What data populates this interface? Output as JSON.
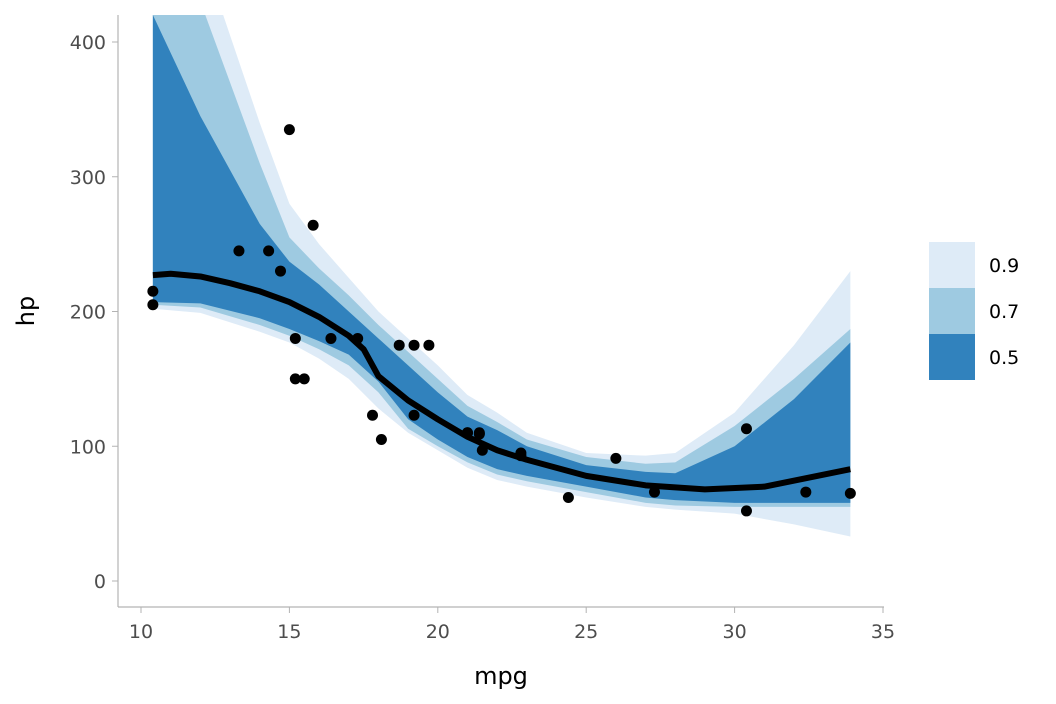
{
  "chart_data": {
    "type": "line",
    "title": "",
    "xlabel": "mpg",
    "ylabel": "hp",
    "xlim": [
      9.2,
      35
    ],
    "ylim": [
      -20,
      420
    ],
    "xticks": [
      10,
      15,
      20,
      25,
      30,
      35
    ],
    "yticks": [
      0,
      100,
      200,
      300,
      400
    ],
    "grid": false,
    "legend": {
      "placement": "right",
      "entries": [
        {
          "label": "0.9",
          "color": "#deebf7"
        },
        {
          "label": "0.7",
          "color": "#9ecae1"
        },
        {
          "label": "0.5",
          "color": "#3182bd"
        }
      ]
    },
    "ribbon_x": [
      10.4,
      12,
      14,
      15,
      16,
      17,
      18,
      19,
      20,
      21,
      22,
      23,
      25,
      27,
      28,
      30,
      32,
      33.9
    ],
    "ribbons": [
      {
        "level": "0.9",
        "upper": [
          600,
          470,
          340,
          280,
          250,
          225,
          200,
          180,
          160,
          138,
          125,
          110,
          95,
          93,
          95,
          125,
          175,
          230
        ],
        "lower": [
          202,
          199,
          185,
          177,
          165,
          150,
          128,
          110,
          97,
          84,
          75,
          70,
          62,
          55,
          53,
          50,
          42,
          33
        ]
      },
      {
        "level": "0.7",
        "upper": [
          500,
          430,
          310,
          255,
          232,
          212,
          190,
          170,
          150,
          130,
          118,
          105,
          92,
          87,
          88,
          115,
          150,
          187
        ],
        "lower": [
          205,
          203,
          190,
          182,
          172,
          160,
          140,
          113,
          100,
          88,
          79,
          74,
          66,
          58,
          56,
          55,
          55,
          55
        ]
      },
      {
        "level": "0.5",
        "upper": [
          420,
          345,
          265,
          237,
          220,
          200,
          180,
          160,
          140,
          122,
          112,
          100,
          86,
          81,
          80,
          100,
          135,
          177
        ],
        "lower": [
          207,
          206,
          195,
          187,
          178,
          168,
          148,
          120,
          105,
          92,
          83,
          78,
          70,
          62,
          60,
          58,
          58,
          58
        ]
      }
    ],
    "median": {
      "x": [
        10.4,
        11,
        12,
        13,
        14,
        15,
        16,
        17,
        17.5,
        18,
        19,
        20,
        21,
        22,
        23,
        25,
        27,
        29,
        31,
        33.9
      ],
      "y": [
        227,
        228,
        226,
        221,
        215,
        207,
        196,
        182,
        172,
        152,
        134,
        120,
        107,
        97,
        90,
        78,
        71,
        68,
        70,
        83
      ]
    },
    "points": {
      "x": [
        21,
        21,
        22.8,
        21.4,
        18.7,
        18.1,
        14.3,
        24.4,
        22.8,
        19.2,
        17.8,
        16.4,
        17.3,
        15.2,
        10.4,
        10.4,
        14.7,
        32.4,
        30.4,
        33.9,
        21.5,
        15.5,
        15.2,
        13.3,
        19.2,
        27.3,
        26,
        30.4,
        15.8,
        19.7,
        15,
        21.4
      ],
      "y": [
        110,
        110,
        93,
        110,
        175,
        105,
        245,
        62,
        95,
        123,
        123,
        180,
        180,
        180,
        205,
        215,
        230,
        66,
        52,
        65,
        97,
        150,
        150,
        245,
        175,
        66,
        91,
        113,
        264,
        175,
        335,
        109
      ]
    }
  }
}
